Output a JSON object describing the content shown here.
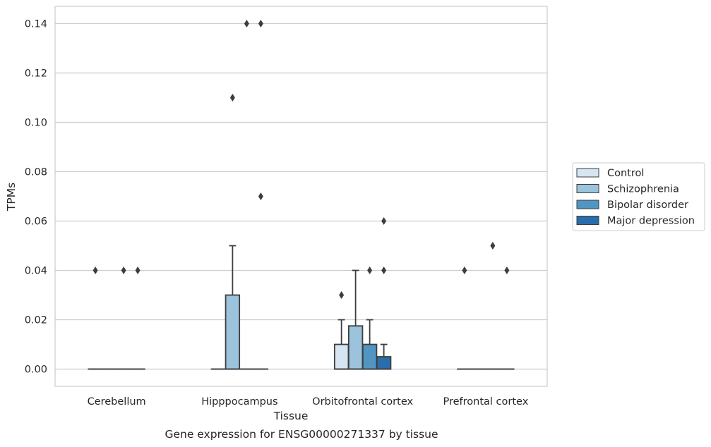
{
  "chart_data": {
    "type": "box",
    "xlabel": "Tissue",
    "ylabel": "TPMs",
    "caption": "Gene expression for ENSG00000271337 by tissue",
    "ylim": [
      -0.007,
      0.147
    ],
    "yticks": [
      0.0,
      0.02,
      0.04,
      0.06,
      0.08,
      0.1,
      0.12,
      0.14
    ],
    "ytick_labels": [
      "0.00",
      "0.02",
      "0.04",
      "0.06",
      "0.08",
      "0.10",
      "0.12",
      "0.14"
    ],
    "grid": "horizontal",
    "legend_position": "right",
    "categories": [
      "Cerebellum",
      "Hipppocampus",
      "Orbitofrontal cortex",
      "Prefrontal cortex"
    ],
    "series": [
      {
        "name": "Control",
        "color": "#d6e5f2",
        "boxes": [
          {
            "q1": 0,
            "median": 0,
            "q3": 0,
            "whislo": 0,
            "whishi": 0,
            "fliers": [
              0.04
            ]
          },
          {
            "q1": 0,
            "median": 0,
            "q3": 0,
            "whislo": 0,
            "whishi": 0,
            "fliers": []
          },
          {
            "q1": 0,
            "median": 0,
            "q3": 0.01,
            "whislo": 0,
            "whishi": 0.02,
            "fliers": [
              0.03
            ]
          },
          {
            "q1": 0,
            "median": 0,
            "q3": 0,
            "whislo": 0,
            "whishi": 0,
            "fliers": [
              0.04
            ]
          }
        ]
      },
      {
        "name": "Schizophrenia",
        "color": "#9cc3dc",
        "boxes": [
          {
            "q1": 0,
            "median": 0,
            "q3": 0,
            "whislo": 0,
            "whishi": 0,
            "fliers": []
          },
          {
            "q1": 0,
            "median": 0,
            "q3": 0.03,
            "whislo": 0,
            "whishi": 0.05,
            "fliers": [
              0.11
            ]
          },
          {
            "q1": 0,
            "median": 0,
            "q3": 0.0175,
            "whislo": 0,
            "whishi": 0.04,
            "fliers": []
          },
          {
            "q1": 0,
            "median": 0,
            "q3": 0,
            "whislo": 0,
            "whishi": 0,
            "fliers": []
          }
        ]
      },
      {
        "name": "Bipolar disorder",
        "color": "#5195c3",
        "boxes": [
          {
            "q1": 0,
            "median": 0,
            "q3": 0,
            "whislo": 0,
            "whishi": 0,
            "fliers": [
              0.04
            ]
          },
          {
            "q1": 0,
            "median": 0,
            "q3": 0,
            "whislo": 0,
            "whishi": 0,
            "fliers": [
              0.14
            ]
          },
          {
            "q1": 0,
            "median": 0,
            "q3": 0.01,
            "whislo": 0,
            "whishi": 0.02,
            "fliers": [
              0.04
            ]
          },
          {
            "q1": 0,
            "median": 0,
            "q3": 0,
            "whislo": 0,
            "whishi": 0,
            "fliers": [
              0.05
            ]
          }
        ]
      },
      {
        "name": "Major depression",
        "color": "#2a6dab",
        "boxes": [
          {
            "q1": 0,
            "median": 0,
            "q3": 0,
            "whislo": 0,
            "whishi": 0,
            "fliers": [
              0.04
            ]
          },
          {
            "q1": 0,
            "median": 0,
            "q3": 0,
            "whislo": 0,
            "whishi": 0,
            "fliers": [
              0.14,
              0.07
            ]
          },
          {
            "q1": 0,
            "median": 0,
            "q3": 0.005,
            "whislo": 0,
            "whishi": 0.01,
            "fliers": [
              0.06,
              0.04
            ]
          },
          {
            "q1": 0,
            "median": 0,
            "q3": 0,
            "whislo": 0,
            "whishi": 0,
            "fliers": [
              0.04
            ]
          }
        ]
      }
    ]
  }
}
